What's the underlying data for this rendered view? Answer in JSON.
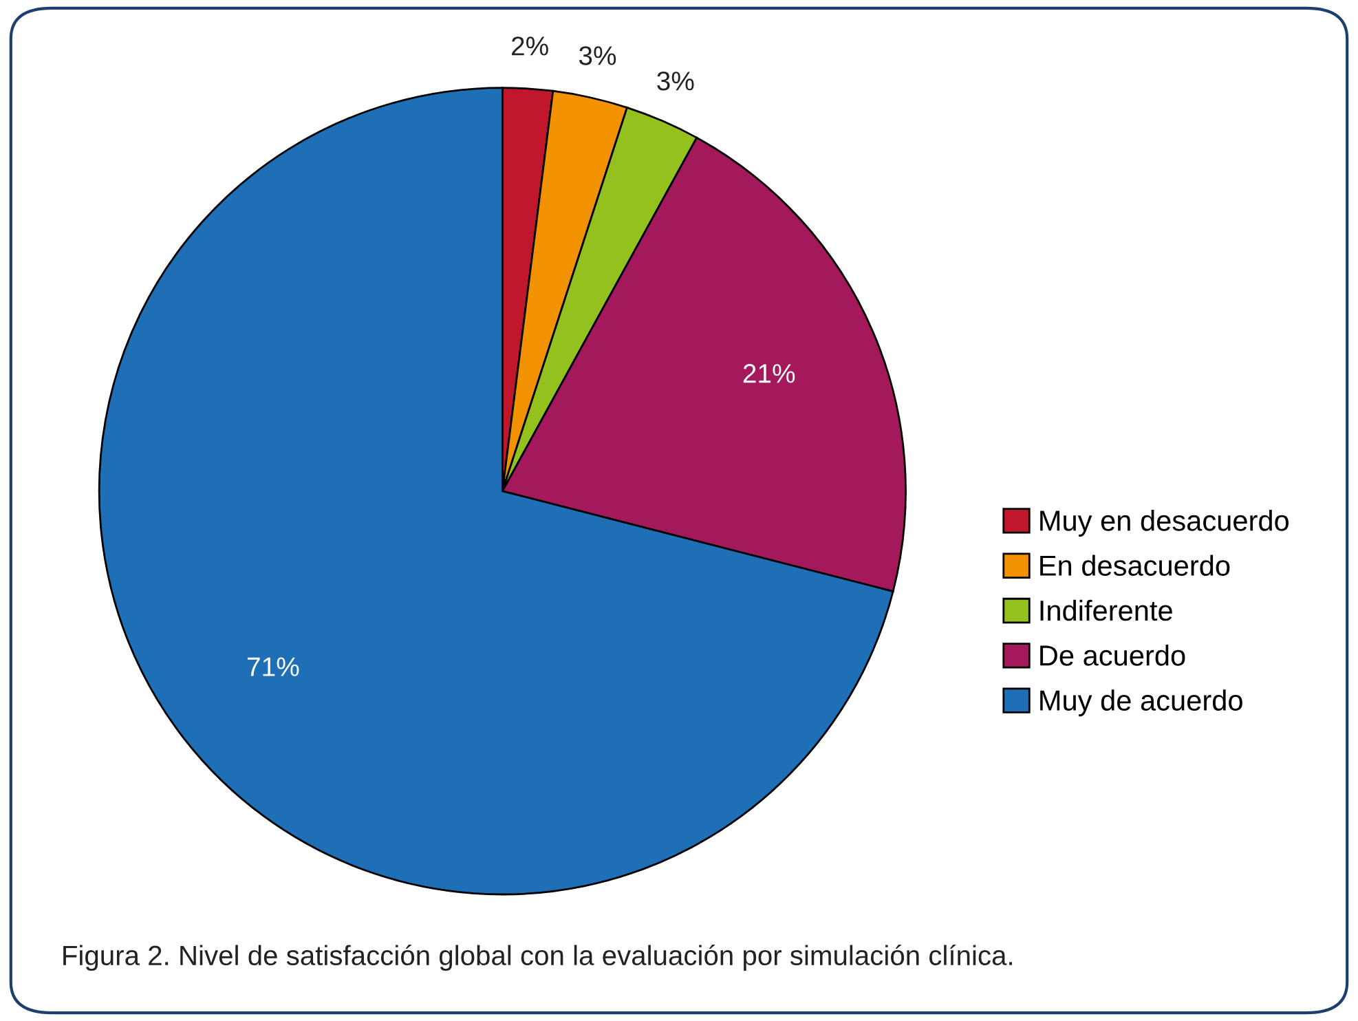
{
  "chart_data": {
    "type": "pie",
    "categories": [
      "Muy en desacuerdo",
      "En desacuerdo",
      "Indiferente",
      "De acuerdo",
      "Muy de acuerdo"
    ],
    "values": [
      2,
      3,
      3,
      21,
      71
    ],
    "colors": [
      "#c1172c",
      "#f39200",
      "#95c11f",
      "#a3195b",
      "#1f6fb7"
    ],
    "value_labels": [
      "2%",
      "3%",
      "3%",
      "21%",
      "71%"
    ],
    "legend": "right",
    "annotations": [
      "Figura 2. Nivel de satisfacción global con la evaluación por simulación clínica."
    ]
  }
}
